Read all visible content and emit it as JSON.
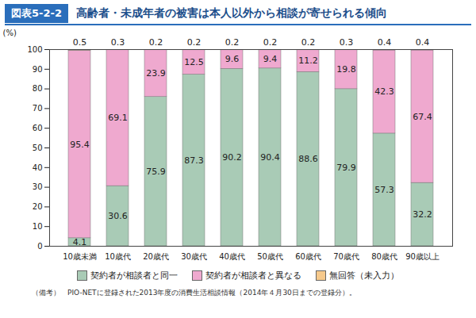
{
  "chart_data": {
    "type": "bar",
    "figure_label": "図表5-2-2",
    "title": "高齢者・未成年者の被害は本人以外から相談が寄せられる傾向",
    "y_label": "(%)",
    "note": "（備考）　PIO-NETに登録された2013年度の消費生活相談情報（2014年４月30日までの登録分）。",
    "categories": [
      "10歳未満",
      "10歳代",
      "20歳代",
      "30歳代",
      "40歳代",
      "50歳代",
      "60歳代",
      "70歳代",
      "80歳代",
      "90歳以上"
    ],
    "series": [
      {
        "name": "契約者が相談者と同一",
        "color": "#a9cbb6",
        "values": [
          4.1,
          30.6,
          75.9,
          87.3,
          90.2,
          90.4,
          88.6,
          79.9,
          57.3,
          32.2
        ]
      },
      {
        "name": "契約者が相談者と異なる",
        "color": "#efa9cf",
        "values": [
          95.4,
          69.1,
          23.9,
          12.5,
          9.6,
          9.4,
          11.2,
          19.8,
          42.3,
          67.4
        ]
      },
      {
        "name": "無回答（未入力）",
        "color": "#f6c98c",
        "values": [
          0.5,
          0.3,
          0.2,
          0.2,
          0.2,
          0.2,
          0.2,
          0.3,
          0.4,
          0.4
        ]
      }
    ],
    "ylim": [
      0,
      100
    ],
    "yticks": [
      0,
      10,
      20,
      30,
      40,
      50,
      60,
      70,
      80,
      90,
      100
    ],
    "stacked": true,
    "data_labels": true,
    "grid": false,
    "legend": "bottom"
  }
}
